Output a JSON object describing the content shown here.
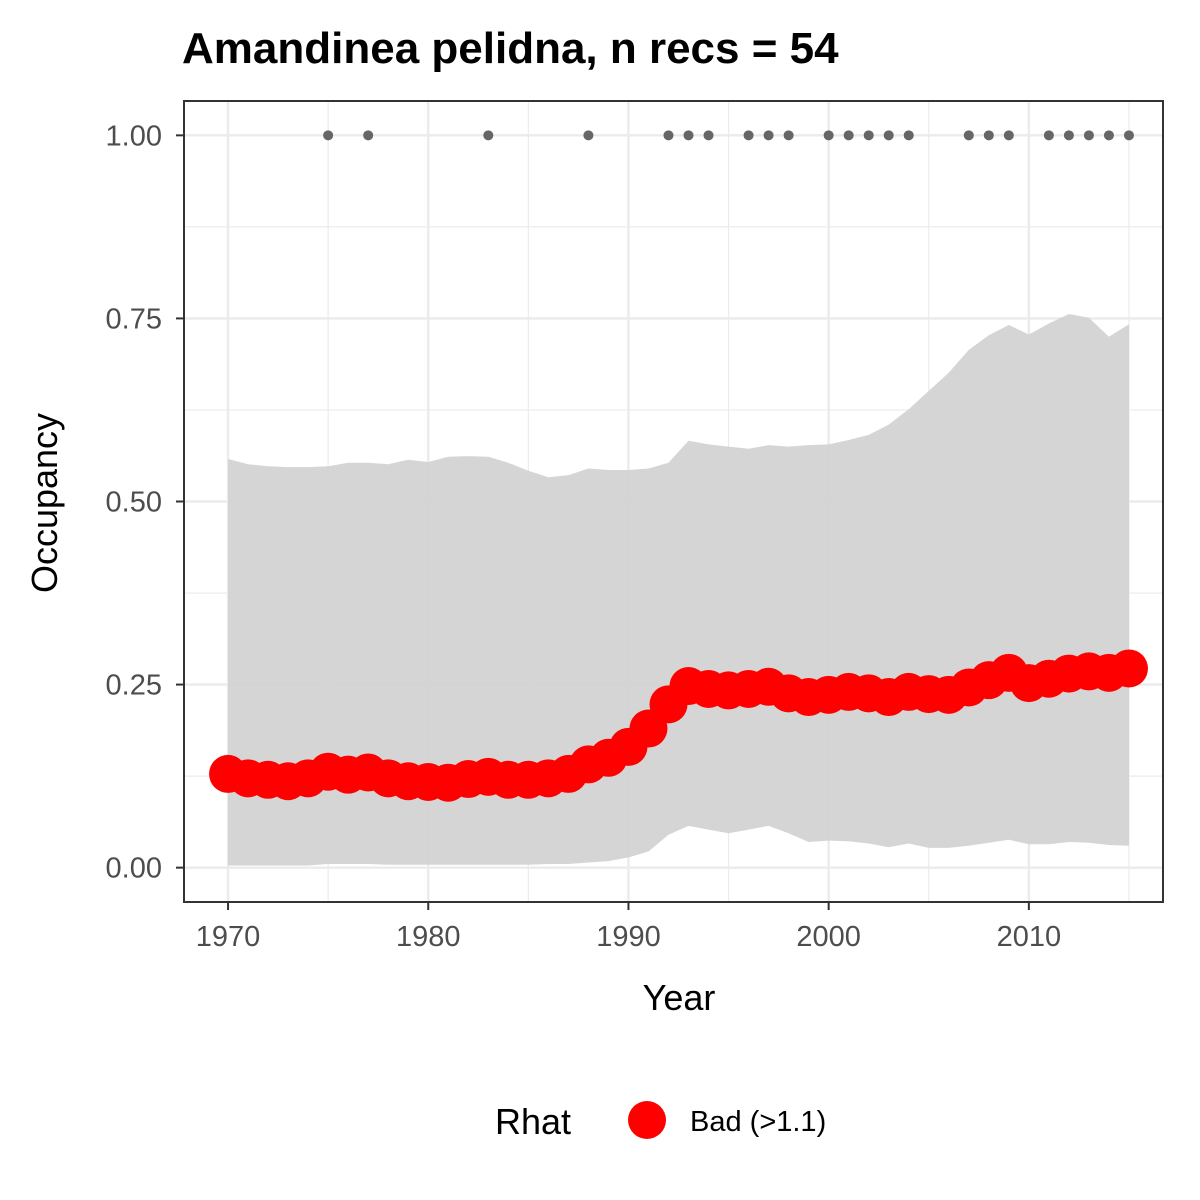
{
  "chart_data": {
    "type": "line",
    "title": "Amandinea pelidna, n recs = 54",
    "xlabel": "Year",
    "ylabel": "Occupancy",
    "xlim": [
      1967.8,
      2016.7
    ],
    "ylim": [
      -0.0469,
      1.0469
    ],
    "x_ticks": [
      1970,
      1980,
      1990,
      2000,
      2010
    ],
    "x_tick_labels": [
      "1970",
      "1980",
      "1990",
      "2000",
      "2010"
    ],
    "y_ticks": [
      0,
      0.25,
      0.5,
      0.75,
      1.0
    ],
    "y_tick_labels": [
      "0.00",
      "0.25",
      "0.50",
      "0.75",
      "1.00"
    ],
    "grid": true,
    "years": [
      1970,
      1971,
      1972,
      1973,
      1974,
      1975,
      1976,
      1977,
      1978,
      1979,
      1980,
      1981,
      1982,
      1983,
      1984,
      1985,
      1986,
      1987,
      1988,
      1989,
      1990,
      1991,
      1992,
      1993,
      1994,
      1995,
      1996,
      1997,
      1998,
      1999,
      2000,
      2001,
      2002,
      2003,
      2004,
      2005,
      2006,
      2007,
      2008,
      2009,
      2010,
      2011,
      2012,
      2013,
      2014,
      2015
    ],
    "series": [
      {
        "name": "Bad (>1.1)",
        "color": "#ff0000",
        "values": [
          0.128,
          0.122,
          0.12,
          0.118,
          0.122,
          0.131,
          0.127,
          0.13,
          0.122,
          0.118,
          0.117,
          0.116,
          0.121,
          0.124,
          0.12,
          0.12,
          0.122,
          0.128,
          0.141,
          0.15,
          0.165,
          0.19,
          0.223,
          0.248,
          0.244,
          0.242,
          0.244,
          0.247,
          0.238,
          0.233,
          0.236,
          0.24,
          0.238,
          0.233,
          0.24,
          0.237,
          0.236,
          0.246,
          0.256,
          0.266,
          0.252,
          0.258,
          0.265,
          0.268,
          0.266,
          0.272
        ]
      }
    ],
    "interval": {
      "lower": [
        0.003,
        0.003,
        0.003,
        0.003,
        0.003,
        0.005,
        0.005,
        0.005,
        0.004,
        0.004,
        0.004,
        0.004,
        0.004,
        0.004,
        0.004,
        0.004,
        0.005,
        0.005,
        0.007,
        0.009,
        0.014,
        0.022,
        0.045,
        0.057,
        0.052,
        0.047,
        0.052,
        0.057,
        0.047,
        0.035,
        0.037,
        0.036,
        0.033,
        0.028,
        0.033,
        0.027,
        0.027,
        0.03,
        0.034,
        0.038,
        0.032,
        0.032,
        0.035,
        0.034,
        0.031,
        0.03
      ],
      "upper": [
        0.558,
        0.551,
        0.548,
        0.547,
        0.547,
        0.548,
        0.553,
        0.553,
        0.551,
        0.557,
        0.554,
        0.561,
        0.562,
        0.561,
        0.553,
        0.542,
        0.533,
        0.536,
        0.545,
        0.543,
        0.543,
        0.545,
        0.553,
        0.583,
        0.578,
        0.575,
        0.572,
        0.577,
        0.575,
        0.577,
        0.578,
        0.584,
        0.591,
        0.605,
        0.626,
        0.651,
        0.676,
        0.707,
        0.727,
        0.741,
        0.728,
        0.743,
        0.756,
        0.751,
        0.725,
        0.742
      ],
      "color": "#d3d3d3"
    },
    "record_years": [
      1975,
      1977,
      1983,
      1988,
      1992,
      1993,
      1994,
      1996,
      1997,
      1998,
      2000,
      2001,
      2002,
      2003,
      2004,
      2007,
      2008,
      2009,
      2011,
      2012,
      2013,
      2014,
      2015
    ],
    "record_value": 1.0,
    "record_color": "#666666",
    "legend": {
      "title": "Rhat",
      "position": "bottom",
      "entries": [
        {
          "label": "Bad (>1.1)",
          "color": "#ff0000"
        }
      ]
    }
  }
}
